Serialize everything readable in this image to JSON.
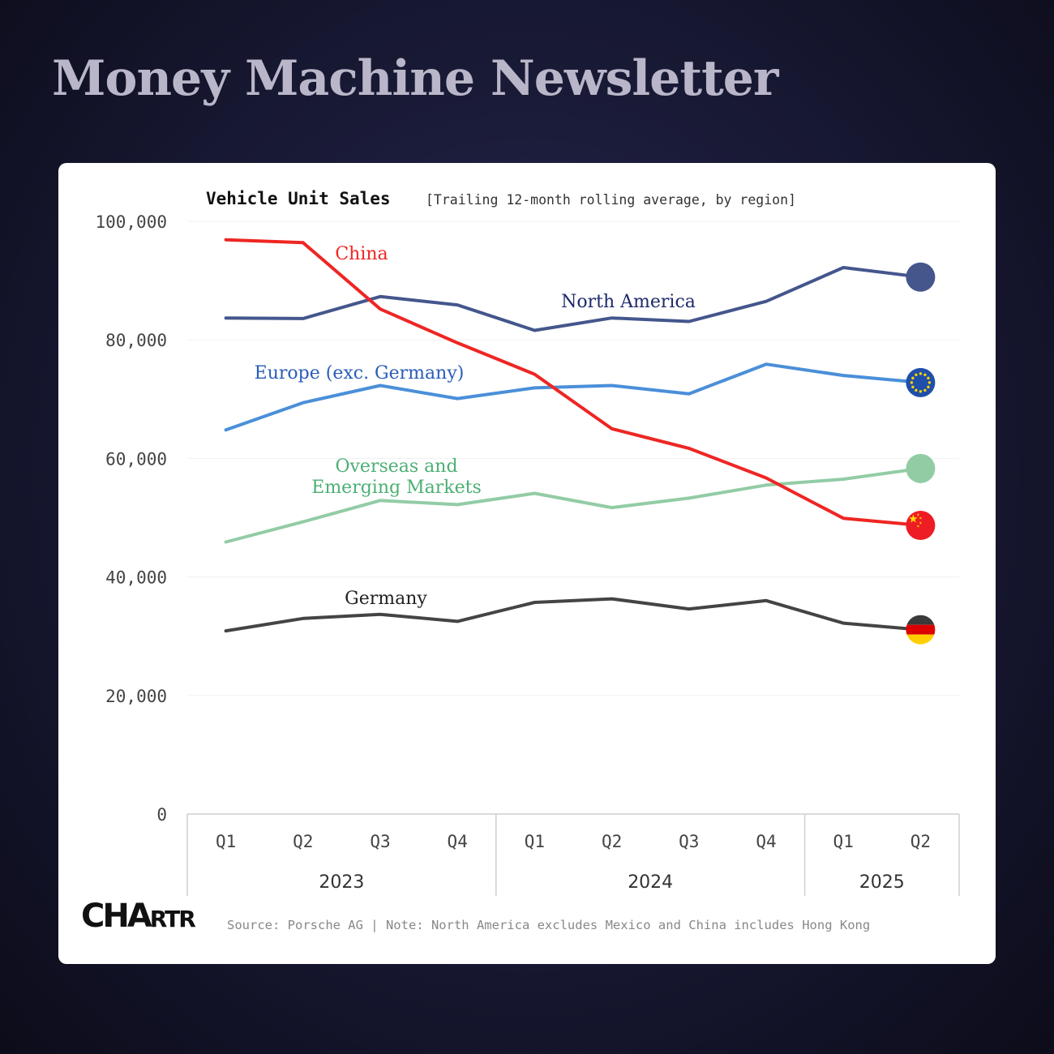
{
  "header": {
    "title": "Money Machine Newsletter"
  },
  "chart_data": {
    "type": "line",
    "title": "Vehicle Unit Sales",
    "subtitle": "[Trailing 12-month rolling average, by region]",
    "x": [
      "2023 Q1",
      "2023 Q2",
      "2023 Q3",
      "2023 Q4",
      "2024 Q1",
      "2024 Q2",
      "2024 Q3",
      "2024 Q4",
      "2025 Q1",
      "2025 Q2"
    ],
    "x_quarter_labels": [
      "Q1",
      "Q2",
      "Q3",
      "Q4",
      "Q1",
      "Q2",
      "Q3",
      "Q4",
      "Q1",
      "Q2"
    ],
    "x_year_groups": [
      {
        "label": "2023",
        "span": 4
      },
      {
        "label": "2024",
        "span": 4
      },
      {
        "label": "2025",
        "span": 2
      }
    ],
    "ylim": [
      0,
      100000
    ],
    "yticks": [
      0,
      20000,
      40000,
      60000,
      80000,
      100000
    ],
    "ytick_labels": [
      "0",
      "20,000",
      "40,000",
      "60,000",
      "80,000",
      "100,000"
    ],
    "grid": true,
    "series": [
      {
        "name": "China",
        "color": "#ee2623",
        "marker_icon": "china-flag-icon",
        "values": [
          96900,
          96400,
          85200,
          79500,
          74200,
          65000,
          61700,
          56700,
          49900,
          48700
        ]
      },
      {
        "name": "North America",
        "color": "#44568c",
        "label_color": "#1e2a6a",
        "marker_icon": "usa-dot-icon",
        "values": [
          83700,
          83600,
          87300,
          85900,
          81600,
          83700,
          83100,
          86500,
          92200,
          90600
        ]
      },
      {
        "name": "Europe (exc. Germany)",
        "color": "#4a8fd9",
        "label_color": "#2a5cb8",
        "marker_icon": "eu-flag-icon",
        "values": [
          64800,
          69400,
          72300,
          70100,
          71900,
          72300,
          70900,
          75900,
          74000,
          72800
        ]
      },
      {
        "name": "Overseas and\nEmerging Markets",
        "color": "#92cca5",
        "label_color": "#4caf74",
        "marker_icon": "overseas-dot-icon",
        "values": [
          45900,
          49300,
          52900,
          52200,
          54100,
          51700,
          53300,
          55500,
          56500,
          58300
        ]
      },
      {
        "name": "Germany",
        "color": "#444444",
        "label_color": "#222222",
        "marker_icon": "germany-flag-icon",
        "values": [
          30900,
          33000,
          33700,
          32500,
          35700,
          36300,
          34600,
          36000,
          32200,
          31100
        ]
      }
    ]
  },
  "footer": {
    "logo_main": "CHA",
    "logo_small": "RTR",
    "source": "Source: Porsche AG | Note: North America excludes Mexico and China includes Hong Kong"
  }
}
